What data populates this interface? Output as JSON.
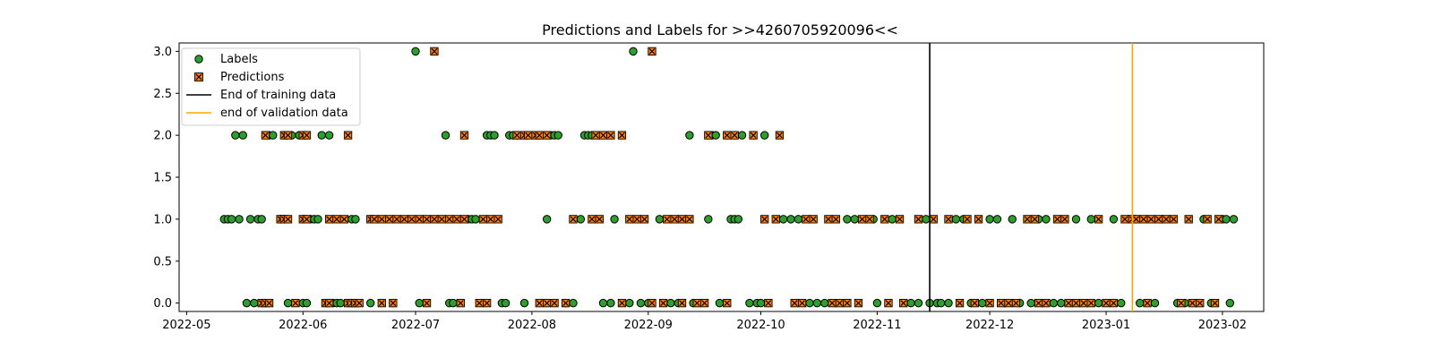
{
  "chart_data": {
    "type": "scatter",
    "title": "Predictions and Labels for >>4260705920096<<",
    "xlabel": "",
    "ylabel": "",
    "xlim": [
      "2022-04-29",
      "2023-02-12"
    ],
    "ylim": [
      -0.1,
      3.1
    ],
    "x_ticks": [
      "2022-05",
      "2022-06",
      "2022-07",
      "2022-08",
      "2022-09",
      "2022-10",
      "2022-11",
      "2022-12",
      "2023-01",
      "2023-02"
    ],
    "y_ticks": [
      "0.0",
      "0.5",
      "1.0",
      "1.5",
      "2.0",
      "2.5",
      "3.0"
    ],
    "grid": false,
    "legend_position": "upper-left",
    "series": [
      {
        "name": "Labels",
        "color": "#2ca02c",
        "marker": "circle",
        "points": [
          [
            "2022-05-11",
            1
          ],
          [
            "2022-05-12",
            1
          ],
          [
            "2022-05-13",
            1
          ],
          [
            "2022-05-15",
            1
          ],
          [
            "2022-05-14",
            2
          ],
          [
            "2022-05-16",
            2
          ],
          [
            "2022-05-17",
            0
          ],
          [
            "2022-05-19",
            0
          ],
          [
            "2022-05-18",
            1
          ],
          [
            "2022-05-20",
            1
          ],
          [
            "2022-05-21",
            1
          ],
          [
            "2022-05-23",
            2
          ],
          [
            "2022-05-24",
            2
          ],
          [
            "2022-05-26",
            1
          ],
          [
            "2022-05-27",
            1
          ],
          [
            "2022-05-28",
            0
          ],
          [
            "2022-05-29",
            2
          ],
          [
            "2022-05-31",
            2
          ],
          [
            "2022-06-01",
            0
          ],
          [
            "2022-06-02",
            0
          ],
          [
            "2022-06-03",
            1
          ],
          [
            "2022-06-04",
            1
          ],
          [
            "2022-06-05",
            1
          ],
          [
            "2022-06-06",
            2
          ],
          [
            "2022-06-08",
            2
          ],
          [
            "2022-06-09",
            0
          ],
          [
            "2022-06-10",
            0
          ],
          [
            "2022-06-11",
            0
          ],
          [
            "2022-06-14",
            1
          ],
          [
            "2022-06-15",
            1
          ],
          [
            "2022-06-19",
            0
          ],
          [
            "2022-06-25",
            0
          ],
          [
            "2022-07-01",
            3
          ],
          [
            "2022-07-02",
            0
          ],
          [
            "2022-07-09",
            2
          ],
          [
            "2022-07-10",
            0
          ],
          [
            "2022-07-11",
            0
          ],
          [
            "2022-07-15",
            1
          ],
          [
            "2022-07-16",
            1
          ],
          [
            "2022-07-17",
            1
          ],
          [
            "2022-07-20",
            2
          ],
          [
            "2022-07-21",
            2
          ],
          [
            "2022-07-22",
            2
          ],
          [
            "2022-07-24",
            0
          ],
          [
            "2022-07-25",
            0
          ],
          [
            "2022-07-26",
            2
          ],
          [
            "2022-07-27",
            2
          ],
          [
            "2022-07-28",
            2
          ],
          [
            "2022-07-30",
            0
          ],
          [
            "2022-08-05",
            1
          ],
          [
            "2022-08-06",
            2
          ],
          [
            "2022-08-07",
            2
          ],
          [
            "2022-08-08",
            2
          ],
          [
            "2022-08-10",
            0
          ],
          [
            "2022-08-12",
            0
          ],
          [
            "2022-08-14",
            1
          ],
          [
            "2022-08-15",
            2
          ],
          [
            "2022-08-16",
            2
          ],
          [
            "2022-08-17",
            2
          ],
          [
            "2022-08-20",
            0
          ],
          [
            "2022-08-22",
            0
          ],
          [
            "2022-08-23",
            1
          ],
          [
            "2022-08-27",
            0
          ],
          [
            "2022-08-28",
            3
          ],
          [
            "2022-08-30",
            0
          ],
          [
            "2022-09-01",
            0
          ],
          [
            "2022-09-04",
            1
          ],
          [
            "2022-09-07",
            0
          ],
          [
            "2022-09-09",
            0
          ],
          [
            "2022-09-12",
            2
          ],
          [
            "2022-09-13",
            0
          ],
          [
            "2022-09-17",
            1
          ],
          [
            "2022-09-18",
            2
          ],
          [
            "2022-09-19",
            2
          ],
          [
            "2022-09-20",
            0
          ],
          [
            "2022-09-23",
            1
          ],
          [
            "2022-09-24",
            1
          ],
          [
            "2022-09-25",
            1
          ],
          [
            "2022-09-26",
            2
          ],
          [
            "2022-09-28",
            0
          ],
          [
            "2022-09-30",
            0
          ],
          [
            "2022-10-01",
            0
          ],
          [
            "2022-10-02",
            2
          ],
          [
            "2022-10-07",
            1
          ],
          [
            "2022-10-09",
            1
          ],
          [
            "2022-10-11",
            1
          ],
          [
            "2022-10-14",
            0
          ],
          [
            "2022-10-16",
            0
          ],
          [
            "2022-10-18",
            0
          ],
          [
            "2022-10-24",
            1
          ],
          [
            "2022-10-26",
            1
          ],
          [
            "2022-10-31",
            1
          ],
          [
            "2022-11-01",
            0
          ],
          [
            "2022-11-05",
            1
          ],
          [
            "2022-11-10",
            0
          ],
          [
            "2022-11-12",
            0
          ],
          [
            "2022-11-14",
            1
          ],
          [
            "2022-11-15",
            0
          ],
          [
            "2022-11-17",
            0
          ],
          [
            "2022-11-18",
            0
          ],
          [
            "2022-11-20",
            0
          ],
          [
            "2022-11-22",
            1
          ],
          [
            "2022-11-24",
            1
          ],
          [
            "2022-11-26",
            0
          ],
          [
            "2022-11-29",
            0
          ],
          [
            "2022-12-01",
            1
          ],
          [
            "2022-12-03",
            1
          ],
          [
            "2022-12-05",
            0
          ],
          [
            "2022-12-07",
            1
          ],
          [
            "2022-12-09",
            0
          ],
          [
            "2022-12-12",
            0
          ],
          [
            "2022-12-14",
            1
          ],
          [
            "2022-12-16",
            1
          ],
          [
            "2022-12-18",
            0
          ],
          [
            "2022-12-20",
            0
          ],
          [
            "2022-12-24",
            1
          ],
          [
            "2022-12-28",
            1
          ],
          [
            "2022-12-30",
            0
          ],
          [
            "2023-01-03",
            1
          ],
          [
            "2023-01-05",
            0
          ],
          [
            "2023-01-07",
            1
          ],
          [
            "2023-01-10",
            0
          ],
          [
            "2023-01-14",
            0
          ],
          [
            "2023-01-16",
            1
          ],
          [
            "2023-01-20",
            0
          ],
          [
            "2023-01-22",
            0
          ],
          [
            "2023-01-25",
            0
          ],
          [
            "2023-01-27",
            1
          ],
          [
            "2023-01-29",
            0
          ],
          [
            "2023-02-01",
            1
          ],
          [
            "2023-02-02",
            1
          ],
          [
            "2023-02-03",
            0
          ],
          [
            "2023-02-04",
            1
          ]
        ]
      },
      {
        "name": "Predictions",
        "color": "#ff7f0e",
        "marker": "x-box",
        "points": [
          [
            "2022-05-21",
            0
          ],
          [
            "2022-05-22",
            0
          ],
          [
            "2022-05-23",
            0
          ],
          [
            "2022-05-22",
            2
          ],
          [
            "2022-05-26",
            1
          ],
          [
            "2022-05-27",
            1
          ],
          [
            "2022-05-28",
            1
          ],
          [
            "2022-05-27",
            2
          ],
          [
            "2022-05-28",
            2
          ],
          [
            "2022-06-01",
            2
          ],
          [
            "2022-06-02",
            2
          ],
          [
            "2022-05-30",
            0
          ],
          [
            "2022-06-01",
            1
          ],
          [
            "2022-06-02",
            1
          ],
          [
            "2022-06-07",
            0
          ],
          [
            "2022-06-08",
            0
          ],
          [
            "2022-06-08",
            1
          ],
          [
            "2022-06-10",
            1
          ],
          [
            "2022-06-12",
            1
          ],
          [
            "2022-06-13",
            0
          ],
          [
            "2022-06-14",
            0
          ],
          [
            "2022-06-15",
            0
          ],
          [
            "2022-06-16",
            0
          ],
          [
            "2022-06-13",
            2
          ],
          [
            "2022-06-19",
            1
          ],
          [
            "2022-06-20",
            1
          ],
          [
            "2022-06-22",
            1
          ],
          [
            "2022-06-24",
            1
          ],
          [
            "2022-06-26",
            1
          ],
          [
            "2022-06-28",
            1
          ],
          [
            "2022-06-30",
            1
          ],
          [
            "2022-07-02",
            1
          ],
          [
            "2022-07-04",
            1
          ],
          [
            "2022-07-06",
            1
          ],
          [
            "2022-07-08",
            1
          ],
          [
            "2022-06-22",
            0
          ],
          [
            "2022-06-25",
            0
          ],
          [
            "2022-07-04",
            0
          ],
          [
            "2022-07-06",
            3
          ],
          [
            "2022-07-10",
            1
          ],
          [
            "2022-07-12",
            1
          ],
          [
            "2022-07-14",
            1
          ],
          [
            "2022-07-14",
            2
          ],
          [
            "2022-07-13",
            0
          ],
          [
            "2022-07-18",
            0
          ],
          [
            "2022-07-20",
            0
          ],
          [
            "2022-07-19",
            1
          ],
          [
            "2022-07-21",
            1
          ],
          [
            "2022-07-23",
            1
          ],
          [
            "2022-07-28",
            2
          ],
          [
            "2022-07-30",
            2
          ],
          [
            "2022-07-31",
            2
          ],
          [
            "2022-08-02",
            2
          ],
          [
            "2022-08-03",
            2
          ],
          [
            "2022-08-05",
            2
          ],
          [
            "2022-08-03",
            0
          ],
          [
            "2022-08-05",
            0
          ],
          [
            "2022-08-07",
            0
          ],
          [
            "2022-08-10",
            0
          ],
          [
            "2022-08-12",
            1
          ],
          [
            "2022-08-17",
            1
          ],
          [
            "2022-08-19",
            1
          ],
          [
            "2022-08-18",
            2
          ],
          [
            "2022-08-20",
            2
          ],
          [
            "2022-08-22",
            2
          ],
          [
            "2022-08-25",
            2
          ],
          [
            "2022-08-27",
            1
          ],
          [
            "2022-08-29",
            1
          ],
          [
            "2022-08-31",
            1
          ],
          [
            "2022-08-25",
            0
          ],
          [
            "2022-09-02",
            0
          ],
          [
            "2022-09-05",
            0
          ],
          [
            "2022-09-02",
            3
          ],
          [
            "2022-09-06",
            1
          ],
          [
            "2022-09-08",
            1
          ],
          [
            "2022-09-10",
            1
          ],
          [
            "2022-09-12",
            1
          ],
          [
            "2022-09-10",
            0
          ],
          [
            "2022-09-14",
            0
          ],
          [
            "2022-09-16",
            0
          ],
          [
            "2022-09-17",
            2
          ],
          [
            "2022-09-22",
            2
          ],
          [
            "2022-09-24",
            2
          ],
          [
            "2022-09-29",
            2
          ],
          [
            "2022-10-02",
            1
          ],
          [
            "2022-10-05",
            1
          ],
          [
            "2022-10-06",
            2
          ],
          [
            "2022-09-22",
            0
          ],
          [
            "2022-10-03",
            0
          ],
          [
            "2022-10-10",
            0
          ],
          [
            "2022-10-12",
            0
          ],
          [
            "2022-10-13",
            1
          ],
          [
            "2022-10-15",
            1
          ],
          [
            "2022-10-19",
            1
          ],
          [
            "2022-10-21",
            1
          ],
          [
            "2022-10-20",
            0
          ],
          [
            "2022-10-22",
            0
          ],
          [
            "2022-10-24",
            0
          ],
          [
            "2022-10-27",
            0
          ],
          [
            "2022-10-28",
            1
          ],
          [
            "2022-10-30",
            1
          ],
          [
            "2022-11-03",
            1
          ],
          [
            "2022-11-07",
            1
          ],
          [
            "2022-11-04",
            0
          ],
          [
            "2022-11-08",
            0
          ],
          [
            "2022-11-12",
            1
          ],
          [
            "2022-11-16",
            1
          ],
          [
            "2022-11-20",
            1
          ],
          [
            "2022-11-25",
            1
          ],
          [
            "2022-11-28",
            1
          ],
          [
            "2022-11-23",
            0
          ],
          [
            "2022-11-27",
            0
          ],
          [
            "2022-12-01",
            0
          ],
          [
            "2022-12-04",
            0
          ],
          [
            "2022-12-06",
            0
          ],
          [
            "2022-12-08",
            0
          ],
          [
            "2022-12-11",
            1
          ],
          [
            "2022-12-13",
            1
          ],
          [
            "2022-12-14",
            0
          ],
          [
            "2022-12-16",
            0
          ],
          [
            "2022-12-19",
            1
          ],
          [
            "2022-12-21",
            1
          ],
          [
            "2022-12-22",
            0
          ],
          [
            "2022-12-24",
            0
          ],
          [
            "2022-12-26",
            0
          ],
          [
            "2022-12-28",
            0
          ],
          [
            "2022-12-30",
            1
          ],
          [
            "2023-01-01",
            0
          ],
          [
            "2023-01-03",
            0
          ],
          [
            "2023-01-06",
            1
          ],
          [
            "2023-01-08",
            1
          ],
          [
            "2023-01-09",
            1
          ],
          [
            "2023-01-11",
            1
          ],
          [
            "2023-01-12",
            0
          ],
          [
            "2023-01-13",
            1
          ],
          [
            "2023-01-15",
            1
          ],
          [
            "2023-01-17",
            1
          ],
          [
            "2023-01-19",
            1
          ],
          [
            "2023-01-21",
            0
          ],
          [
            "2023-01-23",
            1
          ],
          [
            "2023-01-24",
            0
          ],
          [
            "2023-01-26",
            0
          ],
          [
            "2023-01-28",
            1
          ],
          [
            "2023-01-30",
            0
          ],
          [
            "2023-01-31",
            1
          ]
        ]
      }
    ],
    "vlines": [
      {
        "name": "End of training data",
        "x": "2022-11-15",
        "color": "#000000"
      },
      {
        "name": "end of validation data",
        "x": "2023-01-08",
        "color": "#ffa500"
      }
    ]
  }
}
